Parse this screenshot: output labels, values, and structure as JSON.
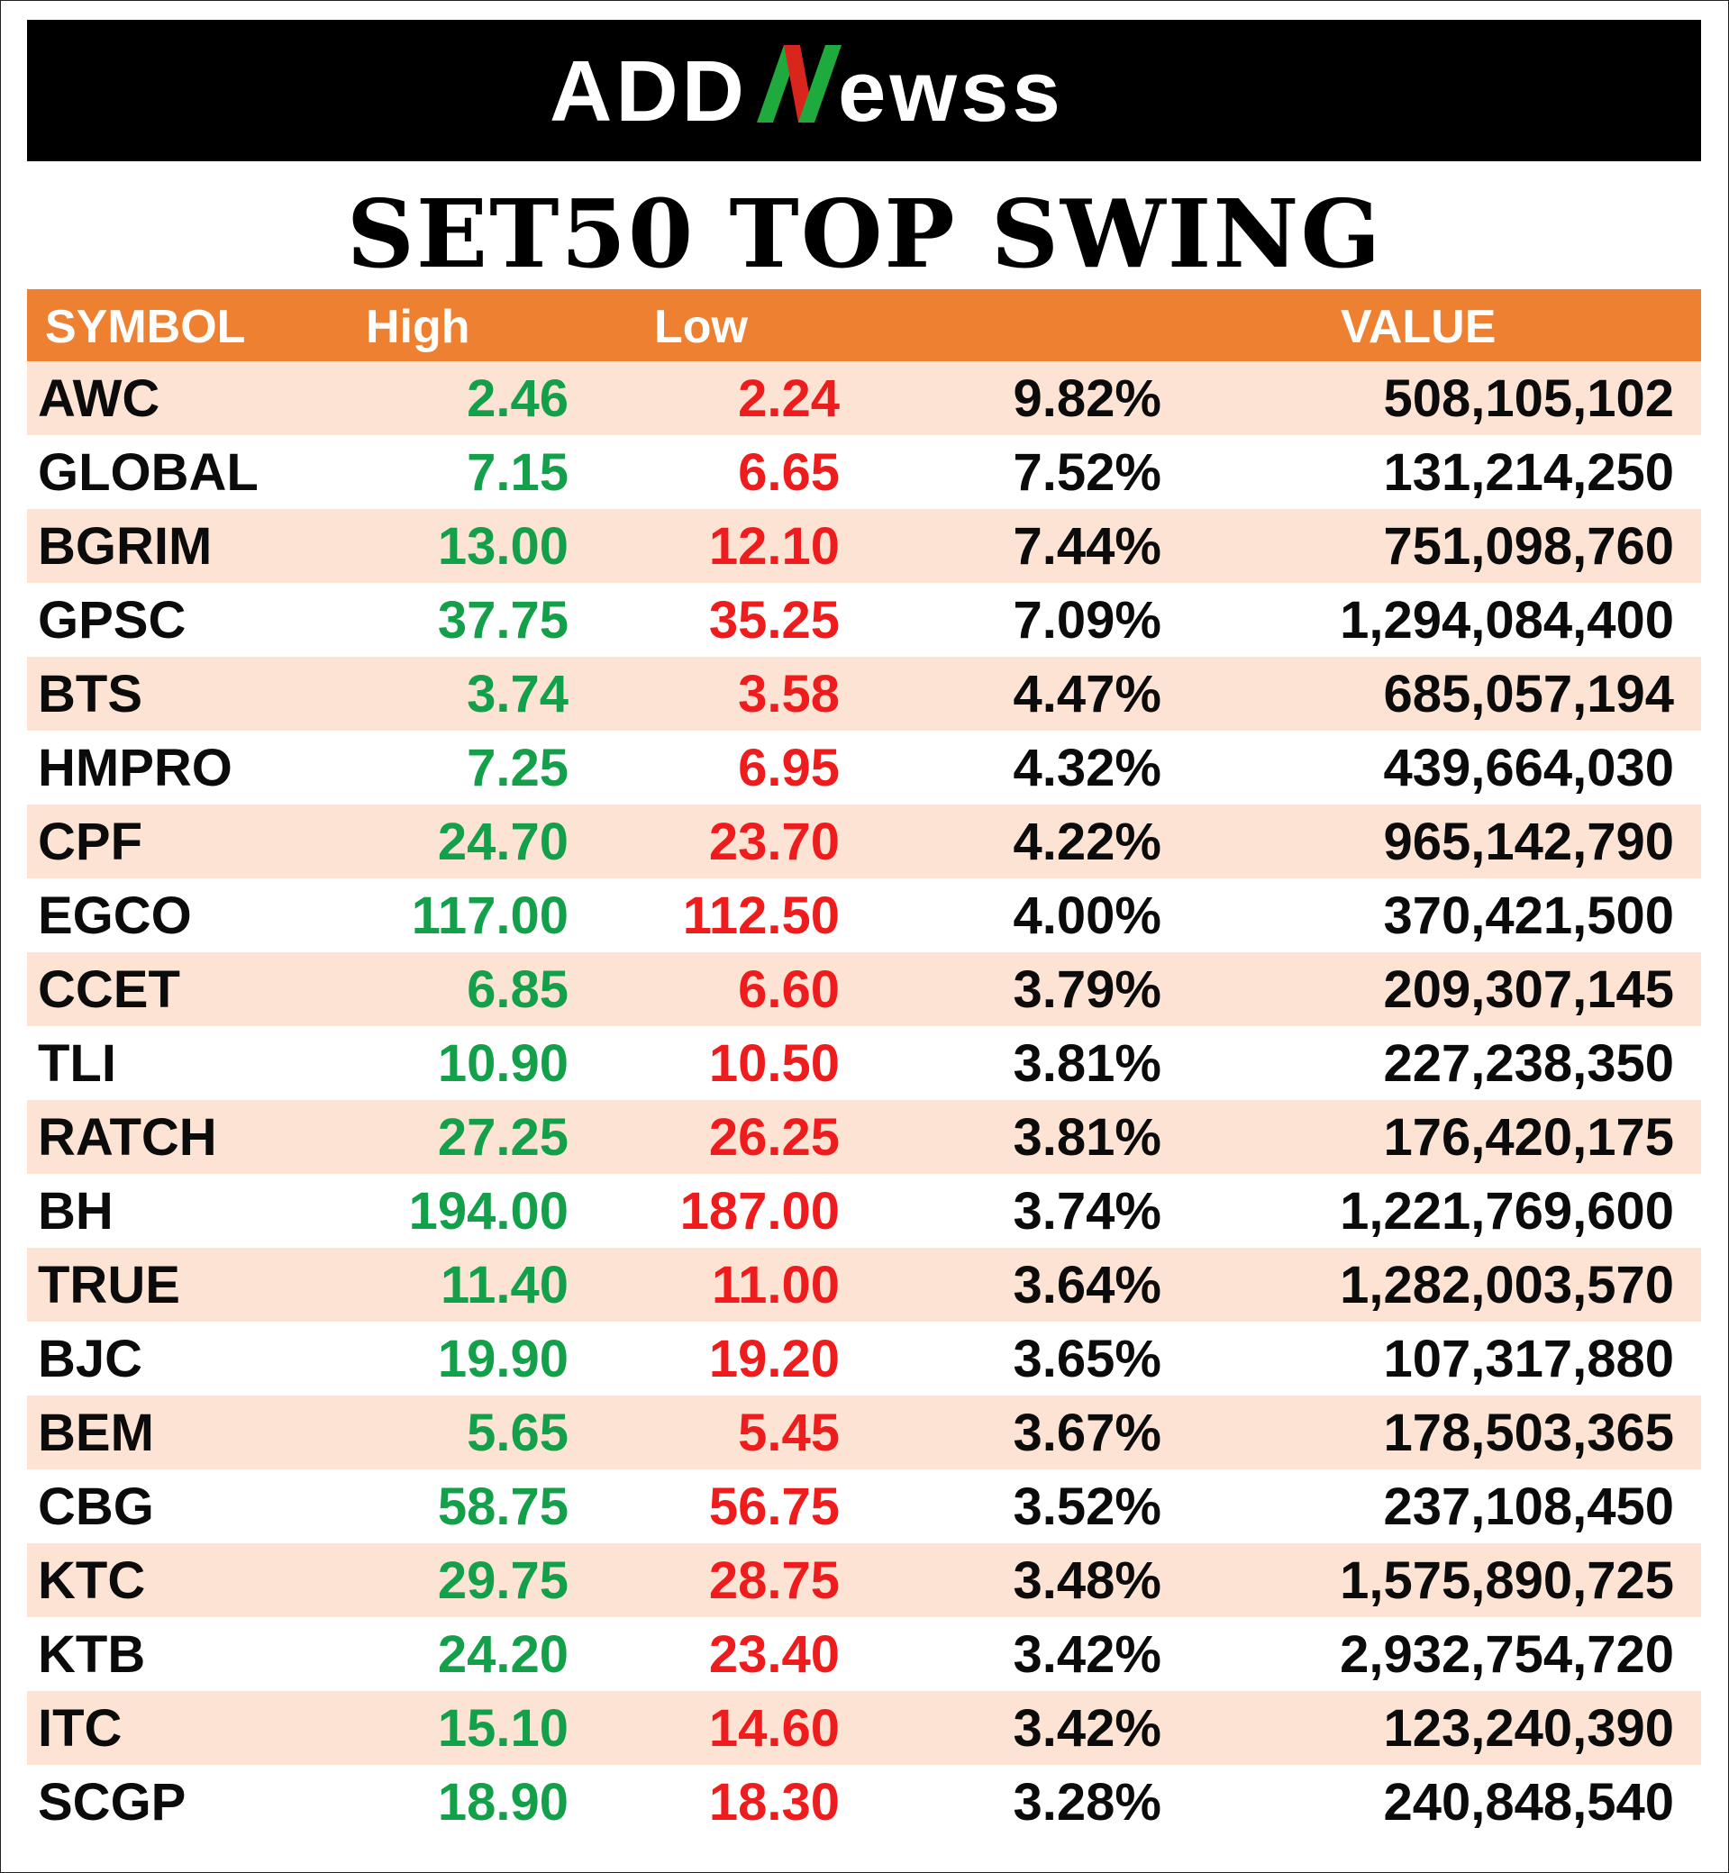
{
  "brand": {
    "prefix": "ADD",
    "suffix": "ewss",
    "colors": {
      "text": "#ffffff",
      "n_left": "#1faa3d",
      "n_mid": "#d9261c",
      "background": "#000000"
    }
  },
  "title": "SET50 TOP SWING",
  "table": {
    "headers": {
      "symbol": "SYMBOL",
      "high": "High",
      "low": "Low",
      "pct": "",
      "value": "VALUE"
    },
    "header_color": "#ee8131",
    "stripe_color": "#fde3d3",
    "high_color": "#14a04a",
    "low_color": "#ee1c1c",
    "rows": [
      {
        "symbol": "AWC",
        "high": "2.46",
        "low": "2.24",
        "pct": "9.82%",
        "value": "508,105,102"
      },
      {
        "symbol": "GLOBAL",
        "high": "7.15",
        "low": "6.65",
        "pct": "7.52%",
        "value": "131,214,250"
      },
      {
        "symbol": "BGRIM",
        "high": "13.00",
        "low": "12.10",
        "pct": "7.44%",
        "value": "751,098,760"
      },
      {
        "symbol": "GPSC",
        "high": "37.75",
        "low": "35.25",
        "pct": "7.09%",
        "value": "1,294,084,400"
      },
      {
        "symbol": "BTS",
        "high": "3.74",
        "low": "3.58",
        "pct": "4.47%",
        "value": "685,057,194"
      },
      {
        "symbol": "HMPRO",
        "high": "7.25",
        "low": "6.95",
        "pct": "4.32%",
        "value": "439,664,030"
      },
      {
        "symbol": "CPF",
        "high": "24.70",
        "low": "23.70",
        "pct": "4.22%",
        "value": "965,142,790"
      },
      {
        "symbol": "EGCO",
        "high": "117.00",
        "low": "112.50",
        "pct": "4.00%",
        "value": "370,421,500"
      },
      {
        "symbol": "CCET",
        "high": "6.85",
        "low": "6.60",
        "pct": "3.79%",
        "value": "209,307,145"
      },
      {
        "symbol": "TLI",
        "high": "10.90",
        "low": "10.50",
        "pct": "3.81%",
        "value": "227,238,350"
      },
      {
        "symbol": "RATCH",
        "high": "27.25",
        "low": "26.25",
        "pct": "3.81%",
        "value": "176,420,175"
      },
      {
        "symbol": "BH",
        "high": "194.00",
        "low": "187.00",
        "pct": "3.74%",
        "value": "1,221,769,600"
      },
      {
        "symbol": "TRUE",
        "high": "11.40",
        "low": "11.00",
        "pct": "3.64%",
        "value": "1,282,003,570"
      },
      {
        "symbol": "BJC",
        "high": "19.90",
        "low": "19.20",
        "pct": "3.65%",
        "value": "107,317,880"
      },
      {
        "symbol": "BEM",
        "high": "5.65",
        "low": "5.45",
        "pct": "3.67%",
        "value": "178,503,365"
      },
      {
        "symbol": "CBG",
        "high": "58.75",
        "low": "56.75",
        "pct": "3.52%",
        "value": "237,108,450"
      },
      {
        "symbol": "KTC",
        "high": "29.75",
        "low": "28.75",
        "pct": "3.48%",
        "value": "1,575,890,725"
      },
      {
        "symbol": "KTB",
        "high": "24.20",
        "low": "23.40",
        "pct": "3.42%",
        "value": "2,932,754,720"
      },
      {
        "symbol": "ITC",
        "high": "15.10",
        "low": "14.60",
        "pct": "3.42%",
        "value": "123,240,390"
      },
      {
        "symbol": "SCGP",
        "high": "18.90",
        "low": "18.30",
        "pct": "3.28%",
        "value": "240,848,540"
      }
    ]
  }
}
